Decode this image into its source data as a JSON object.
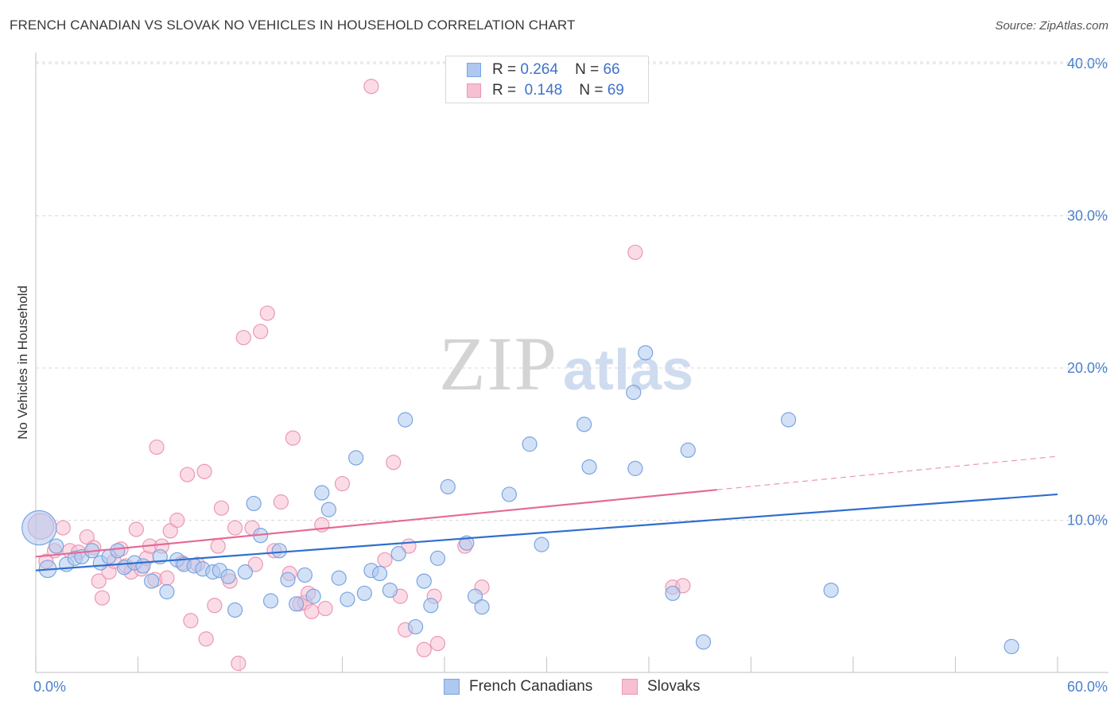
{
  "title": "FRENCH CANADIAN VS SLOVAK NO VEHICLES IN HOUSEHOLD CORRELATION CHART",
  "source": "Source: ZipAtlas.com",
  "watermark": {
    "zip": "ZIP",
    "atlas": "atlas"
  },
  "legend": {
    "rows": [
      {
        "r_label": "R =",
        "r_value": "0.264",
        "n_label": "N =",
        "n_value": "66"
      },
      {
        "r_label": "R =",
        "r_value": "0.148",
        "n_label": "N =",
        "n_value": "69"
      }
    ]
  },
  "colors": {
    "blue_fill": "#aec8f0",
    "blue_stroke": "#7aa5e0",
    "blue_line": "#2f6fce",
    "pink_fill": "#f7bfd2",
    "pink_stroke": "#ec97b4",
    "pink_line": "#e46a94",
    "grid": "#d8d8d8",
    "axis_text": "#4a7fd0"
  },
  "chart_data": {
    "type": "scatter",
    "xlabel": "",
    "ylabel": "No Vehicles in Household",
    "xlim": [
      0,
      60
    ],
    "ylim": [
      0,
      42
    ],
    "x_tick_labels": [
      "0.0%",
      "60.0%"
    ],
    "y_ticks": [
      10,
      20,
      30,
      40
    ],
    "y_tick_labels": [
      "10.0%",
      "20.0%",
      "30.0%",
      "40.0%"
    ],
    "grid": true,
    "legend_position": "top-center",
    "series": [
      {
        "name": "French Canadians",
        "r": 0.264,
        "n": 66,
        "trend": {
          "x0": 0,
          "y0": 6.7,
          "x1": 60,
          "y1": 11.7
        },
        "points": [
          [
            0.2,
            9.5,
            2.4
          ],
          [
            0.7,
            6.8,
            1.2
          ],
          [
            1.2,
            8.3,
            1
          ],
          [
            1.8,
            7.1,
            1
          ],
          [
            2.3,
            7.5,
            1
          ],
          [
            2.7,
            7.6,
            1
          ],
          [
            3.3,
            8.0,
            1
          ],
          [
            3.8,
            7.2,
            1
          ],
          [
            4.3,
            7.6,
            1
          ],
          [
            4.8,
            8.0,
            1
          ],
          [
            5.2,
            6.9,
            1
          ],
          [
            5.8,
            7.2,
            1
          ],
          [
            6.3,
            7.0,
            1
          ],
          [
            6.8,
            6.0,
            1
          ],
          [
            7.3,
            7.6,
            1
          ],
          [
            7.7,
            5.3,
            1
          ],
          [
            8.3,
            7.4,
            1
          ],
          [
            8.7,
            7.1,
            1
          ],
          [
            9.3,
            7.0,
            1
          ],
          [
            9.8,
            6.8,
            1
          ],
          [
            10.4,
            6.6,
            1
          ],
          [
            10.8,
            6.7,
            1
          ],
          [
            11.3,
            6.3,
            1
          ],
          [
            11.7,
            4.1,
            1
          ],
          [
            12.3,
            6.6,
            1
          ],
          [
            12.8,
            11.1,
            1
          ],
          [
            13.2,
            9.0,
            1
          ],
          [
            13.8,
            4.7,
            1
          ],
          [
            14.3,
            8.0,
            1
          ],
          [
            14.8,
            6.1,
            1
          ],
          [
            15.3,
            4.5,
            1
          ],
          [
            15.8,
            6.4,
            1
          ],
          [
            16.3,
            5.0,
            1
          ],
          [
            16.8,
            11.8,
            1
          ],
          [
            17.2,
            10.7,
            1
          ],
          [
            17.8,
            6.2,
            1
          ],
          [
            18.3,
            4.8,
            1
          ],
          [
            18.8,
            14.1,
            1
          ],
          [
            19.3,
            5.2,
            1
          ],
          [
            19.7,
            6.7,
            1
          ],
          [
            20.2,
            6.5,
            1
          ],
          [
            20.8,
            5.4,
            1
          ],
          [
            21.3,
            7.8,
            1
          ],
          [
            21.7,
            16.6,
            1
          ],
          [
            22.3,
            3.0,
            1
          ],
          [
            22.8,
            6.0,
            1
          ],
          [
            23.2,
            4.4,
            1
          ],
          [
            23.6,
            7.5,
            1
          ],
          [
            24.2,
            12.2,
            1
          ],
          [
            25.3,
            8.5,
            1
          ],
          [
            25.8,
            5.0,
            1
          ],
          [
            26.2,
            4.3,
            1
          ],
          [
            27.8,
            11.7,
            1
          ],
          [
            29.0,
            15.0,
            1
          ],
          [
            29.7,
            8.4,
            1
          ],
          [
            32.2,
            16.3,
            1
          ],
          [
            32.5,
            13.5,
            1
          ],
          [
            35.1,
            18.4,
            1
          ],
          [
            35.2,
            13.4,
            1
          ],
          [
            35.8,
            21.0,
            1
          ],
          [
            37.4,
            5.2,
            1
          ],
          [
            38.3,
            14.6,
            1
          ],
          [
            39.2,
            2.0,
            1
          ],
          [
            44.2,
            16.6,
            1
          ],
          [
            46.7,
            5.4,
            1
          ],
          [
            57.3,
            1.7,
            1
          ]
        ]
      },
      {
        "name": "Slovaks",
        "r": 0.148,
        "n": 69,
        "trend": {
          "x0": 0,
          "y0": 7.6,
          "x1": 40,
          "y1": 12.0,
          "dash_x1": 60,
          "dash_y1": 14.2
        },
        "points": [
          [
            0.3,
            9.6,
            1.8
          ],
          [
            0.6,
            7.3,
            1
          ],
          [
            1.1,
            8.0,
            1
          ],
          [
            1.6,
            9.5,
            1
          ],
          [
            2.0,
            8.0,
            1
          ],
          [
            2.5,
            7.9,
            1
          ],
          [
            3.0,
            8.9,
            1
          ],
          [
            3.4,
            8.2,
            1
          ],
          [
            3.7,
            6.0,
            1
          ],
          [
            3.9,
            4.9,
            1
          ],
          [
            4.3,
            6.6,
            1
          ],
          [
            4.6,
            7.3,
            1
          ],
          [
            5.0,
            8.1,
            1
          ],
          [
            5.3,
            7.0,
            1
          ],
          [
            5.6,
            6.6,
            1
          ],
          [
            5.9,
            9.4,
            1
          ],
          [
            6.2,
            6.8,
            1
          ],
          [
            6.5,
            7.5,
            1
          ],
          [
            6.7,
            8.3,
            1
          ],
          [
            7.0,
            6.1,
            1
          ],
          [
            7.1,
            14.8,
            1
          ],
          [
            7.4,
            8.3,
            1
          ],
          [
            7.7,
            6.2,
            1
          ],
          [
            7.9,
            9.3,
            1
          ],
          [
            8.3,
            10.0,
            1
          ],
          [
            8.6,
            7.2,
            1
          ],
          [
            8.9,
            13.0,
            1
          ],
          [
            9.1,
            3.4,
            1
          ],
          [
            9.5,
            7.1,
            1
          ],
          [
            9.9,
            13.2,
            1
          ],
          [
            10.0,
            2.2,
            1
          ],
          [
            10.5,
            4.4,
            1
          ],
          [
            10.7,
            8.3,
            1
          ],
          [
            10.9,
            10.8,
            1
          ],
          [
            11.4,
            6.0,
            1
          ],
          [
            11.7,
            9.5,
            1
          ],
          [
            11.9,
            0.6,
            1
          ],
          [
            12.2,
            22.0,
            1
          ],
          [
            12.7,
            9.5,
            1
          ],
          [
            12.9,
            7.1,
            1
          ],
          [
            13.2,
            22.4,
            1
          ],
          [
            13.6,
            23.6,
            1
          ],
          [
            14.0,
            8.0,
            1
          ],
          [
            14.4,
            11.2,
            1
          ],
          [
            14.9,
            6.5,
            1
          ],
          [
            15.1,
            15.4,
            1
          ],
          [
            15.5,
            4.5,
            1
          ],
          [
            15.8,
            4.6,
            1
          ],
          [
            16.0,
            5.2,
            1
          ],
          [
            16.2,
            4.0,
            1
          ],
          [
            16.8,
            9.7,
            1
          ],
          [
            17.0,
            4.2,
            1
          ],
          [
            18.0,
            12.4,
            1
          ],
          [
            19.7,
            38.5,
            1
          ],
          [
            20.5,
            7.4,
            1
          ],
          [
            21.0,
            13.8,
            1
          ],
          [
            21.4,
            5.0,
            1
          ],
          [
            21.7,
            2.8,
            1
          ],
          [
            21.9,
            8.3,
            1
          ],
          [
            22.8,
            1.5,
            1
          ],
          [
            23.4,
            5.0,
            1
          ],
          [
            23.6,
            1.9,
            1
          ],
          [
            25.2,
            8.3,
            1
          ],
          [
            26.2,
            5.6,
            1
          ],
          [
            35.2,
            27.6,
            1
          ],
          [
            37.4,
            5.6,
            1
          ],
          [
            38.0,
            5.7,
            1
          ],
          [
            24.8,
            12.2,
            0
          ],
          [
            24.0,
            5.4,
            0
          ]
        ]
      }
    ]
  },
  "bottom_legend": [
    {
      "label": "French Canadians"
    },
    {
      "label": "Slovaks"
    }
  ]
}
